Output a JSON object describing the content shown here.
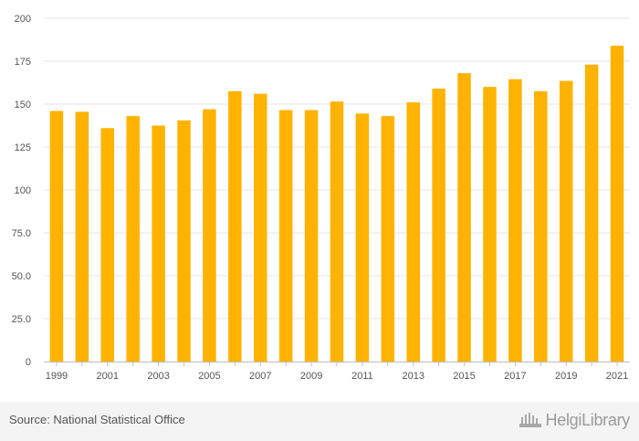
{
  "chart_data": {
    "type": "bar",
    "categories": [
      "1999",
      "2000",
      "2001",
      "2002",
      "2003",
      "2004",
      "2005",
      "2006",
      "2007",
      "2008",
      "2009",
      "2010",
      "2011",
      "2012",
      "2013",
      "2014",
      "2015",
      "2016",
      "2017",
      "2018",
      "2019",
      "2020",
      "2021"
    ],
    "values": [
      146,
      145.5,
      136,
      143,
      137.5,
      140.5,
      147,
      157.5,
      156,
      146.5,
      146.5,
      151.5,
      144.5,
      143,
      151,
      159,
      168,
      160,
      164.5,
      157.5,
      163.5,
      173,
      184
    ],
    "x_tick_labels": [
      "1999",
      "",
      "2001",
      "",
      "2003",
      "",
      "2005",
      "",
      "2007",
      "",
      "2009",
      "",
      "2011",
      "",
      "2013",
      "",
      "2015",
      "",
      "2017",
      "",
      "2019",
      "",
      "2021"
    ],
    "y_ticks": [
      0,
      25,
      50,
      75,
      100,
      125,
      150,
      175,
      200
    ],
    "y_tick_labels": [
      "0",
      "25.0",
      "50.0",
      "75.0",
      "100",
      "125",
      "150",
      "175",
      "200"
    ],
    "ylim": [
      0,
      200
    ],
    "grid": true,
    "bar_color": "#ffb300",
    "title": "",
    "xlabel": "",
    "ylabel": ""
  },
  "footer": {
    "source": "Source: National Statistical Office",
    "logo_text": "HelgiLibrary",
    "logo_icon": "helgi-library-icon"
  }
}
